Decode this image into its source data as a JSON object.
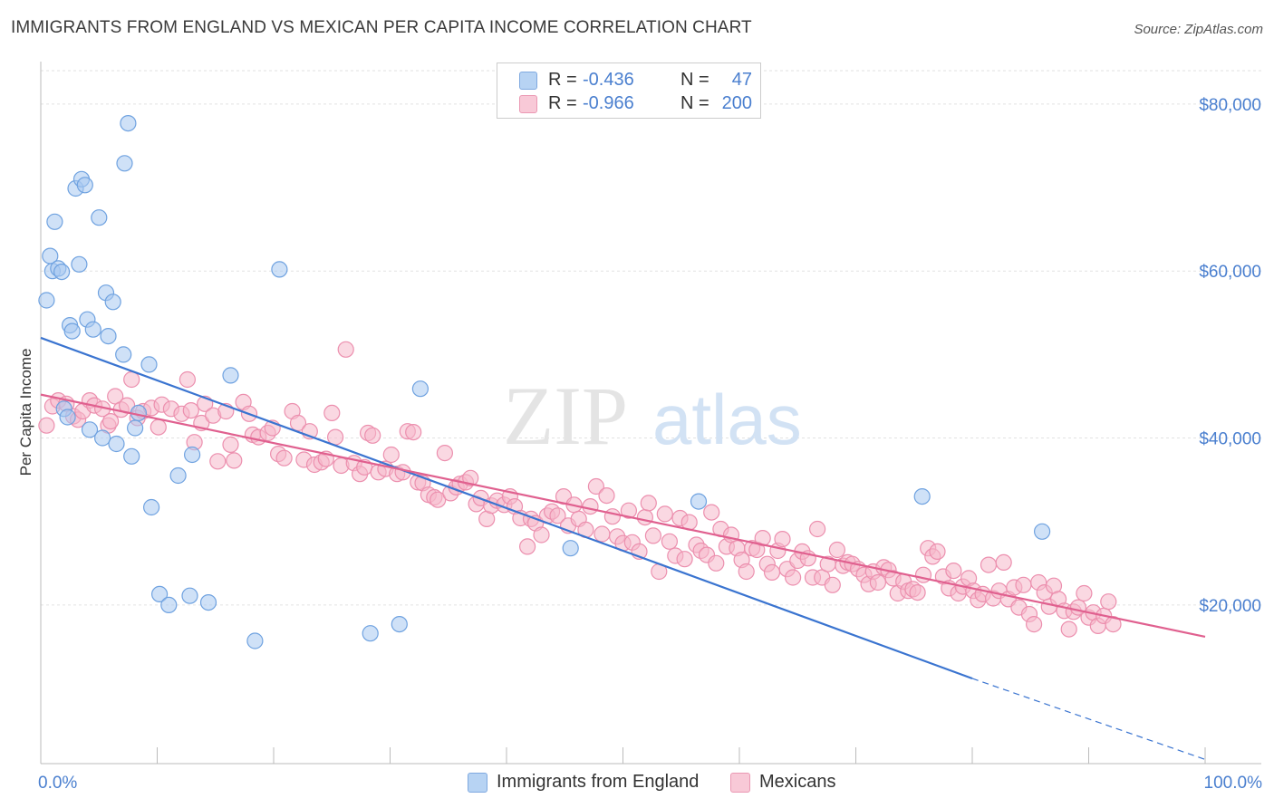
{
  "title": "IMMIGRANTS FROM ENGLAND VS MEXICAN PER CAPITA INCOME CORRELATION CHART",
  "source": "Source: ZipAtlas.com",
  "watermark": {
    "zip": "ZIP",
    "atlas": "atlas"
  },
  "legend": {
    "rows": [
      {
        "r_label": "R =",
        "r_value": "-0.436",
        "n_label": "N =",
        "n_value": "47",
        "color": "#a8c8f0"
      },
      {
        "r_label": "R =",
        "r_value": "-0.966",
        "n_label": "N =",
        "n_value": "200",
        "color": "#f5b8cb"
      }
    ]
  },
  "bottom_legend": [
    {
      "label": "Immigrants from England",
      "color": "#a8c8f0"
    },
    {
      "label": "Mexicans",
      "color": "#f5b8cb"
    }
  ],
  "chart_data": {
    "type": "scatter",
    "ylabel": "Per Capita Income",
    "xlabel": "",
    "x_tick_labels": [
      "0.0%",
      "100.0%"
    ],
    "y_tick_labels": [
      "$20,000",
      "$40,000",
      "$60,000",
      "$80,000"
    ],
    "y_ticks": [
      20000,
      40000,
      60000,
      80000
    ],
    "xlim": [
      0,
      100
    ],
    "ylim": [
      1000,
      84000
    ],
    "grid": true,
    "legend_position": "top-center",
    "series": [
      {
        "name": "Immigrants from England",
        "color": "#6fa2e0",
        "fill": "#a8c8f0",
        "line_color": "#3a74d0",
        "trend": {
          "x0": 0,
          "y0": 52000,
          "x1": 80,
          "y1": 11200,
          "dashed_to_x": 100,
          "dashed_to_y": 1500
        },
        "points": [
          [
            0.5,
            56500
          ],
          [
            0.8,
            61800
          ],
          [
            1.0,
            60000
          ],
          [
            1.2,
            65900
          ],
          [
            1.5,
            60300
          ],
          [
            1.8,
            59900
          ],
          [
            2.0,
            43500
          ],
          [
            2.3,
            42500
          ],
          [
            2.5,
            53500
          ],
          [
            2.7,
            52800
          ],
          [
            3.0,
            69900
          ],
          [
            3.3,
            60800
          ],
          [
            3.5,
            71000
          ],
          [
            3.8,
            70300
          ],
          [
            4.0,
            54200
          ],
          [
            4.2,
            41000
          ],
          [
            4.5,
            53000
          ],
          [
            5.0,
            66400
          ],
          [
            5.3,
            40000
          ],
          [
            5.6,
            57400
          ],
          [
            5.8,
            52200
          ],
          [
            6.2,
            56300
          ],
          [
            6.5,
            39300
          ],
          [
            7.1,
            50000
          ],
          [
            7.5,
            77700
          ],
          [
            7.2,
            72900
          ],
          [
            7.8,
            37800
          ],
          [
            8.1,
            41200
          ],
          [
            8.4,
            43000
          ],
          [
            9.3,
            48800
          ],
          [
            9.5,
            31700
          ],
          [
            10.2,
            21300
          ],
          [
            11.0,
            20000
          ],
          [
            11.8,
            35500
          ],
          [
            12.8,
            21100
          ],
          [
            13.0,
            38000
          ],
          [
            14.4,
            20300
          ],
          [
            16.3,
            47500
          ],
          [
            18.4,
            15700
          ],
          [
            20.5,
            60200
          ],
          [
            28.3,
            16600
          ],
          [
            30.8,
            17700
          ],
          [
            32.6,
            45900
          ],
          [
            45.5,
            26800
          ],
          [
            56.5,
            32400
          ],
          [
            75.7,
            33000
          ],
          [
            86.0,
            28800
          ]
        ]
      },
      {
        "name": "Mexicans",
        "color": "#ec8fae",
        "fill": "#f5b8cb",
        "line_color": "#e0608f",
        "trend": {
          "x0": 0,
          "y0": 45200,
          "x1": 100,
          "y1": 16200
        },
        "points": [
          [
            0.5,
            41500
          ],
          [
            1.0,
            43800
          ],
          [
            1.5,
            44500
          ],
          [
            2.2,
            44100
          ],
          [
            2.8,
            42600
          ],
          [
            3.2,
            42200
          ],
          [
            3.6,
            43200
          ],
          [
            4.2,
            44500
          ],
          [
            4.6,
            43900
          ],
          [
            5.3,
            43500
          ],
          [
            5.8,
            41500
          ],
          [
            6.0,
            42000
          ],
          [
            6.4,
            45000
          ],
          [
            6.9,
            43400
          ],
          [
            7.4,
            43900
          ],
          [
            7.8,
            47000
          ],
          [
            8.3,
            42400
          ],
          [
            8.8,
            43200
          ],
          [
            9.5,
            43600
          ],
          [
            10.1,
            41300
          ],
          [
            10.4,
            44000
          ],
          [
            11.2,
            43500
          ],
          [
            12.1,
            42900
          ],
          [
            12.6,
            47000
          ],
          [
            12.9,
            43300
          ],
          [
            13.2,
            39500
          ],
          [
            13.8,
            41800
          ],
          [
            14.1,
            44100
          ],
          [
            14.8,
            42700
          ],
          [
            15.2,
            37200
          ],
          [
            15.9,
            43200
          ],
          [
            16.3,
            39200
          ],
          [
            16.6,
            37300
          ],
          [
            17.4,
            44300
          ],
          [
            17.9,
            42900
          ],
          [
            18.2,
            40400
          ],
          [
            18.7,
            40100
          ],
          [
            19.5,
            40600
          ],
          [
            19.9,
            41200
          ],
          [
            20.4,
            38100
          ],
          [
            20.9,
            37600
          ],
          [
            21.6,
            43200
          ],
          [
            22.1,
            41800
          ],
          [
            22.6,
            37400
          ],
          [
            23.1,
            40800
          ],
          [
            23.5,
            36800
          ],
          [
            24.1,
            37100
          ],
          [
            24.5,
            37500
          ],
          [
            25.0,
            43000
          ],
          [
            25.3,
            40100
          ],
          [
            25.8,
            36700
          ],
          [
            26.2,
            50600
          ],
          [
            26.9,
            37000
          ],
          [
            27.4,
            35700
          ],
          [
            27.8,
            36500
          ],
          [
            28.1,
            40600
          ],
          [
            28.5,
            40300
          ],
          [
            29.0,
            35900
          ],
          [
            29.6,
            36300
          ],
          [
            30.1,
            38000
          ],
          [
            30.6,
            35700
          ],
          [
            31.1,
            35900
          ],
          [
            31.5,
            40800
          ],
          [
            32.0,
            40700
          ],
          [
            32.4,
            34700
          ],
          [
            32.8,
            34600
          ],
          [
            33.3,
            33200
          ],
          [
            33.8,
            32900
          ],
          [
            34.1,
            32600
          ],
          [
            34.7,
            38200
          ],
          [
            35.2,
            33400
          ],
          [
            35.7,
            34100
          ],
          [
            36.0,
            34500
          ],
          [
            36.5,
            34700
          ],
          [
            36.9,
            35200
          ],
          [
            37.4,
            32100
          ],
          [
            37.8,
            32800
          ],
          [
            38.3,
            30300
          ],
          [
            38.7,
            31900
          ],
          [
            39.2,
            32500
          ],
          [
            39.8,
            32000
          ],
          [
            40.3,
            33000
          ],
          [
            40.7,
            31800
          ],
          [
            41.2,
            30400
          ],
          [
            41.8,
            27000
          ],
          [
            42.1,
            30300
          ],
          [
            42.5,
            29800
          ],
          [
            43.0,
            28400
          ],
          [
            43.5,
            30700
          ],
          [
            43.9,
            31200
          ],
          [
            44.4,
            30700
          ],
          [
            44.9,
            33000
          ],
          [
            45.3,
            29500
          ],
          [
            45.8,
            32000
          ],
          [
            46.2,
            30300
          ],
          [
            46.8,
            29000
          ],
          [
            47.2,
            31800
          ],
          [
            47.7,
            34200
          ],
          [
            48.2,
            28500
          ],
          [
            48.6,
            33100
          ],
          [
            49.1,
            30600
          ],
          [
            49.5,
            28200
          ],
          [
            50.0,
            27400
          ],
          [
            50.5,
            31300
          ],
          [
            50.8,
            27500
          ],
          [
            51.4,
            26400
          ],
          [
            51.9,
            30500
          ],
          [
            52.2,
            32200
          ],
          [
            52.6,
            28300
          ],
          [
            53.1,
            24000
          ],
          [
            53.6,
            30900
          ],
          [
            54.0,
            27600
          ],
          [
            54.5,
            25900
          ],
          [
            54.9,
            30400
          ],
          [
            55.3,
            25500
          ],
          [
            55.7,
            29900
          ],
          [
            56.3,
            27200
          ],
          [
            56.7,
            26500
          ],
          [
            57.2,
            26000
          ],
          [
            57.6,
            31100
          ],
          [
            58.0,
            25000
          ],
          [
            58.4,
            29100
          ],
          [
            58.9,
            27000
          ],
          [
            59.3,
            28400
          ],
          [
            59.8,
            26800
          ],
          [
            60.2,
            25400
          ],
          [
            60.6,
            24000
          ],
          [
            61.1,
            26800
          ],
          [
            61.5,
            26600
          ],
          [
            62.0,
            28000
          ],
          [
            62.4,
            24900
          ],
          [
            62.8,
            23900
          ],
          [
            63.3,
            26500
          ],
          [
            63.7,
            27900
          ],
          [
            64.1,
            24300
          ],
          [
            64.6,
            23300
          ],
          [
            65.0,
            25300
          ],
          [
            65.4,
            26400
          ],
          [
            65.9,
            25600
          ],
          [
            66.3,
            23300
          ],
          [
            66.7,
            29100
          ],
          [
            67.1,
            23300
          ],
          [
            67.6,
            24900
          ],
          [
            68.0,
            22400
          ],
          [
            68.4,
            26600
          ],
          [
            68.9,
            24700
          ],
          [
            69.3,
            25100
          ],
          [
            69.7,
            24900
          ],
          [
            70.2,
            24300
          ],
          [
            70.7,
            23600
          ],
          [
            71.1,
            22500
          ],
          [
            71.5,
            24000
          ],
          [
            71.9,
            22700
          ],
          [
            72.4,
            24500
          ],
          [
            72.8,
            24200
          ],
          [
            73.2,
            23200
          ],
          [
            73.6,
            21400
          ],
          [
            74.1,
            22800
          ],
          [
            74.5,
            21700
          ],
          [
            74.9,
            21900
          ],
          [
            75.3,
            21500
          ],
          [
            75.8,
            23600
          ],
          [
            76.2,
            26800
          ],
          [
            76.6,
            25800
          ],
          [
            77.0,
            26400
          ],
          [
            77.5,
            23400
          ],
          [
            78.0,
            22000
          ],
          [
            78.4,
            24100
          ],
          [
            78.8,
            21400
          ],
          [
            79.2,
            22200
          ],
          [
            79.7,
            23200
          ],
          [
            80.1,
            21700
          ],
          [
            80.5,
            20600
          ],
          [
            80.9,
            21300
          ],
          [
            81.4,
            24800
          ],
          [
            81.8,
            20800
          ],
          [
            82.3,
            21700
          ],
          [
            82.7,
            25100
          ],
          [
            83.1,
            20700
          ],
          [
            83.6,
            22100
          ],
          [
            84.0,
            19700
          ],
          [
            84.4,
            22400
          ],
          [
            84.9,
            18900
          ],
          [
            85.3,
            17700
          ],
          [
            85.7,
            22700
          ],
          [
            86.2,
            21500
          ],
          [
            86.6,
            19800
          ],
          [
            87.0,
            22300
          ],
          [
            87.4,
            20700
          ],
          [
            87.9,
            19300
          ],
          [
            88.3,
            17100
          ],
          [
            88.7,
            19200
          ],
          [
            89.1,
            19700
          ],
          [
            89.6,
            21400
          ],
          [
            90.0,
            18500
          ],
          [
            90.4,
            19100
          ],
          [
            90.8,
            17500
          ],
          [
            91.3,
            18700
          ],
          [
            91.7,
            20400
          ],
          [
            92.1,
            17700
          ]
        ]
      }
    ]
  }
}
